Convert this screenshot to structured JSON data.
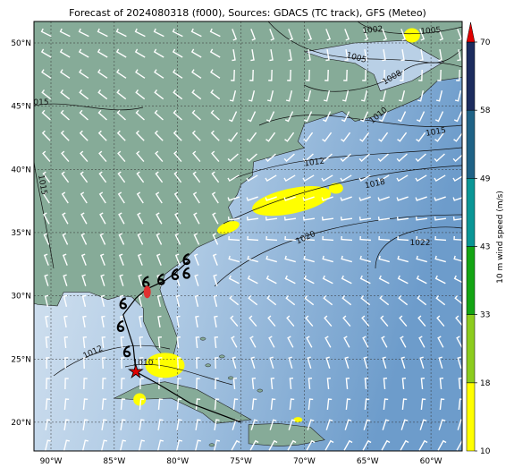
{
  "title": "Forecast of 2024080318 (f000), Sources: GDACS (TC track), GFS (Meteo)",
  "map": {
    "lon_ticks": [
      "90°W",
      "85°W",
      "80°W",
      "75°W",
      "70°W",
      "65°W",
      "60°W"
    ],
    "lat_ticks": [
      "20°N",
      "25°N",
      "30°N",
      "35°N",
      "40°N",
      "45°N",
      "50°N"
    ],
    "isobar_labels": [
      "1002",
      "1005",
      "1005",
      "1008",
      "1010",
      "1015",
      "1012",
      "1018",
      "1020",
      "1022",
      "015",
      "1015",
      "1012",
      "1010"
    ]
  },
  "colorbar": {
    "label": "10 m wind speed (m/s)",
    "ticks": [
      10,
      18,
      33,
      43,
      49,
      58,
      70
    ],
    "colors": [
      "#ffff00",
      "#8ccc1e",
      "#14a514",
      "#0a9696",
      "#1f6286",
      "#1c2c5e"
    ],
    "extend_color": "#e00000"
  }
}
